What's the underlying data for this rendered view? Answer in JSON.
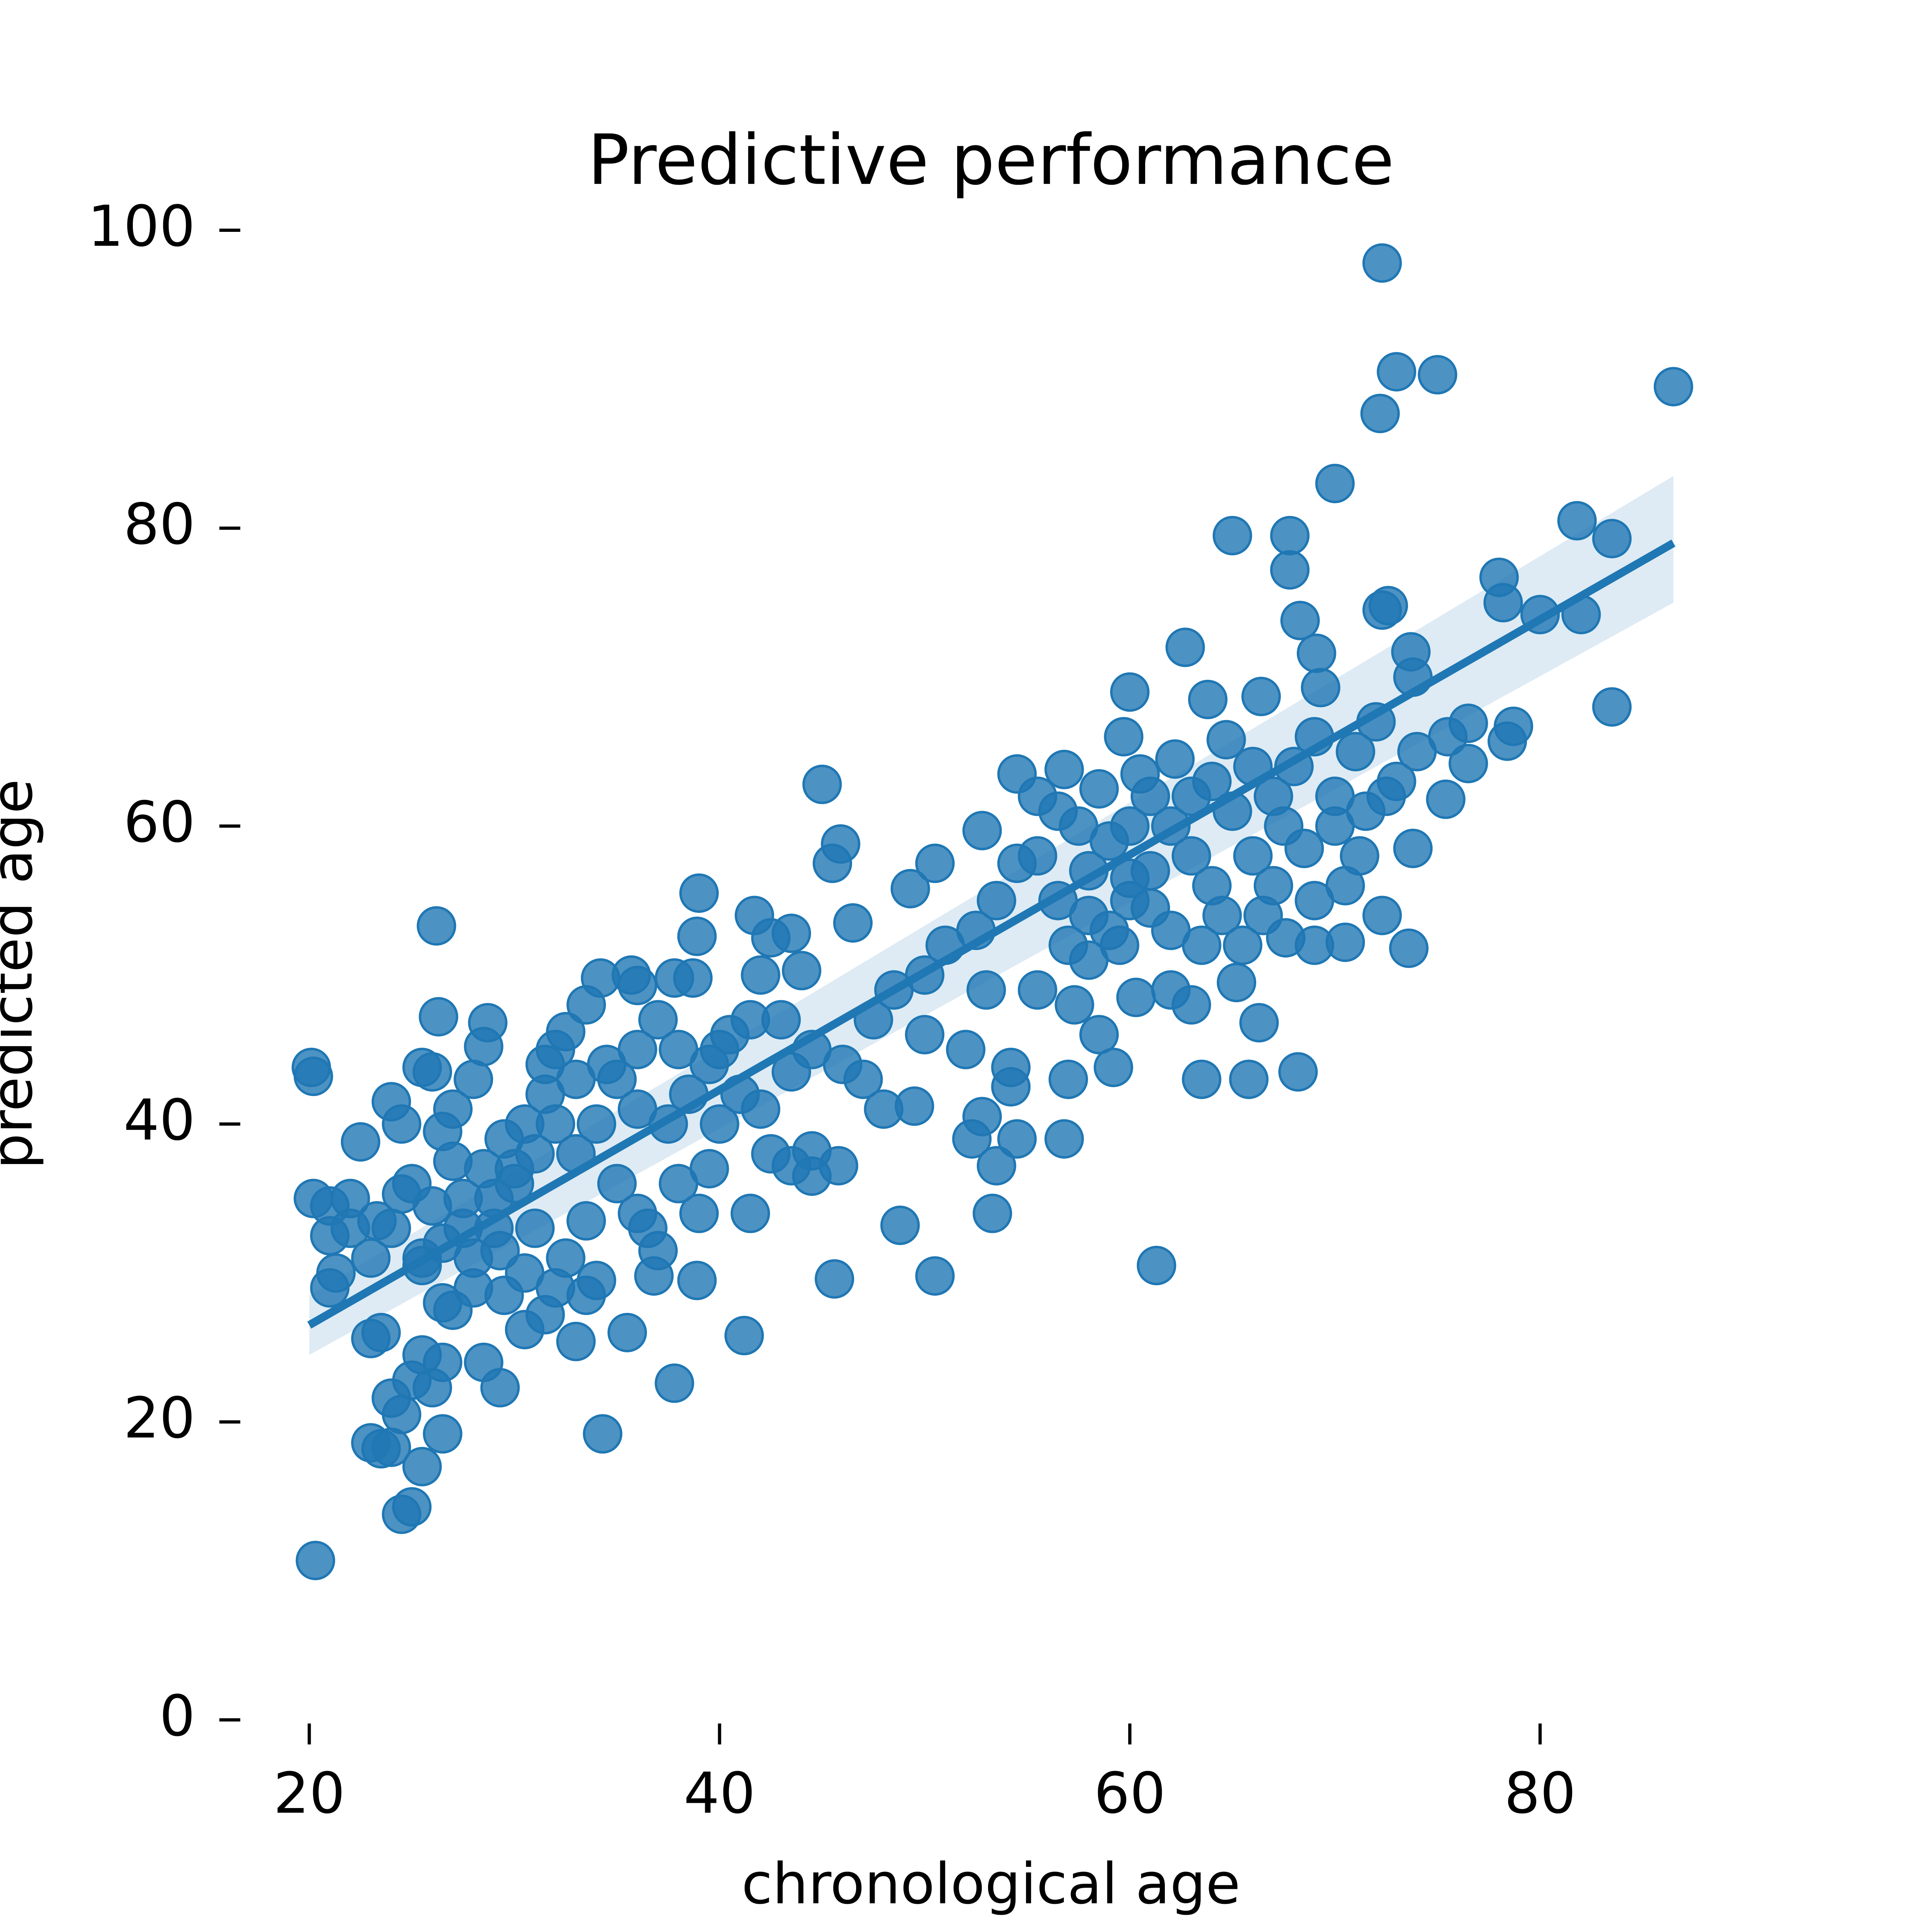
{
  "chart_data": {
    "type": "scatter",
    "title": "Predictive performance",
    "x_label": "chronological age",
    "y_label": "predicted age",
    "color": "#1f77b4",
    "xlim": [
      16.5,
      90
    ],
    "ylim": [
      -3,
      103
    ],
    "xticks": [
      20,
      40,
      60,
      80
    ],
    "yticks": [
      0,
      20,
      40,
      60,
      80,
      100
    ],
    "x": [
      72.3,
      73,
      75,
      86.5,
      72.2,
      70,
      65,
      67.8,
      67.8,
      81.8,
      83.5,
      78,
      78.2,
      72.3,
      72.6,
      80,
      82,
      68.3,
      69.1,
      62.7,
      73.7,
      60,
      63.8,
      66.4,
      69.3,
      73.8,
      83.5,
      76.5,
      78.7,
      78.4,
      59.7,
      64.7,
      45,
      45.9,
      45.5,
      54.5,
      56.8,
      52.8,
      50.5,
      49.3,
      39,
      41.7,
      26.2,
      38.9,
      46.5,
      73.6,
      70.5,
      69,
      67.6,
      72.3,
      75.4,
      76.5,
      73.8,
      20.1,
      20.2,
      20.2,
      21,
      21,
      21.3,
      21,
      22.5,
      23.3,
      24,
      24.5,
      25.5,
      26,
      26.3,
      28.7,
      28.5,
      26.5,
      27,
      25,
      24.5,
      26,
      27.5,
      28,
      29.3,
      27,
      26.5,
      25.5,
      23,
      23.5,
      24,
      24.5,
      23,
      23.5,
      24,
      25,
      25.5,
      26,
      26.5,
      26.5,
      25.5,
      24.5,
      25,
      28.5,
      29.3,
      20.3,
      30.5,
      31.5,
      33,
      33.5,
      34.3,
      35.5,
      37.8,
      38.9,
      36.8,
      34,
      33.5,
      32.5,
      31,
      30,
      29,
      30.5,
      31.5,
      32,
      32.5,
      31.5,
      33.5,
      34.2,
      35.7,
      36,
      37.8,
      38.7,
      37,
      36,
      35,
      34,
      33,
      35,
      36,
      36.5,
      37,
      38,
      39,
      39.5,
      40,
      41,
      40,
      41.5,
      42,
      42.5,
      43.5,
      44,
      43,
      44.5,
      43.5,
      42,
      42.5,
      43.5,
      44.5,
      44.5,
      45.8,
      41.5,
      41.2,
      45.6,
      48.8,
      50.5,
      53.3,
      53.5,
      52.3,
      52.8,
      54.5,
      56.8,
      54.2,
      54.2,
      57,
      59.2,
      61.3,
      63.5,
      65.8,
      68.2,
      66.3,
      65.2,
      63,
      62,
      60.3,
      58.5,
      57.3,
      55.5,
      53,
      52,
      50,
      49.5,
      48,
      47,
      46,
      47.5,
      48.5,
      50,
      51,
      52.5,
      53.5,
      54.5,
      55.5,
      56.5,
      57,
      58,
      59,
      60,
      61,
      62,
      63,
      64,
      65,
      66,
      67,
      68,
      69,
      70,
      71,
      72,
      73,
      74,
      75.5,
      62.2,
      61,
      60,
      59,
      58,
      57.5,
      56.5,
      55.5,
      58.5,
      60.5,
      63,
      64,
      64.5,
      63.5,
      62,
      61,
      60,
      59.5,
      58,
      66,
      67,
      67.5,
      68.5,
      70,
      71.5,
      72.5,
      70.5,
      71.2,
      69,
      66.5,
      65.5,
      28,
      27,
      29.5,
      30,
      31,
      32,
      33,
      34.5,
      36,
      37.5,
      38.5,
      39.5,
      40.5,
      38,
      22,
      23,
      22,
      24,
      25.5,
      26.5,
      27.5,
      28.5,
      29,
      28,
      30.5,
      32,
      29.5
    ],
    "values": [
      97.8,
      90.5,
      90.3,
      89.5,
      87.7,
      83,
      79.5,
      79.5,
      77.2,
      80.5,
      79.3,
      76.7,
      75,
      74.5,
      74.8,
      74.2,
      74.2,
      73.8,
      71.6,
      72,
      71.7,
      69,
      68.5,
      68.7,
      69.3,
      70,
      68,
      66.9,
      66.7,
      65.7,
      66,
      65.8,
      62.8,
      58.8,
      57.5,
      63.5,
      63.8,
      59.7,
      57.5,
      55.8,
      55.5,
      54,
      53.3,
      52.6,
      53.5,
      51.8,
      52.2,
      52,
      52.5,
      54,
      61.8,
      64.2,
      58.5,
      43.8,
      43.2,
      35,
      34.5,
      32.5,
      30,
      29,
      38.8,
      33.5,
      41.5,
      40,
      43.8,
      43.5,
      47.2,
      46.8,
      45.2,
      39.5,
      37.5,
      36,
      35.3,
      34.5,
      33,
      31,
      31.5,
      27.5,
      28,
      30.5,
      25.6,
      26,
      21.6,
      20.5,
      18.6,
      18.2,
      18.3,
      22.8,
      24.5,
      22.3,
      24,
      19.2,
      17,
      13.8,
      14.3,
      24,
      22.3,
      10.7,
      26.2,
      27.2,
      25.4,
      28.5,
      19.2,
      26,
      22.6,
      29.5,
      29.8,
      29.5,
      33.5,
      31,
      33,
      37,
      35,
      40,
      42,
      45,
      46.2,
      44,
      48,
      49.8,
      50,
      49.3,
      49.8,
      49.8,
      47,
      45,
      43,
      40,
      38,
      36,
      34,
      33,
      31.5,
      36,
      34,
      37,
      40,
      42,
      45,
      47,
      50,
      52.5,
      52.8,
      50.3,
      47,
      45,
      43.5,
      41,
      38,
      37.2,
      36.5,
      38.2,
      37.2,
      34,
      25.8,
      29.6,
      33.2,
      29.8,
      34,
      37.2,
      39,
      40.5,
      39,
      39,
      43.8,
      42.5,
      43,
      43.8,
      30.5,
      43,
      43,
      43.5,
      46.8,
      49.5,
      48,
      49,
      48.5,
      46,
      48,
      49,
      49,
      45,
      46,
      41.2,
      41,
      43,
      44,
      47,
      49,
      50,
      52,
      53,
      55,
      57.5,
      58,
      55,
      52,
      51,
      53,
      55,
      57,
      60,
      62,
      63,
      61,
      64,
      62,
      64,
      66,
      62,
      65,
      67,
      63,
      65,
      66,
      64.5,
      62,
      60,
      59,
      57,
      60,
      61,
      62,
      62.5,
      63.5,
      58,
      56,
      54,
      52,
      53,
      54.5,
      56.5,
      52,
      54,
      58,
      56,
      60,
      58.5,
      60,
      61,
      62,
      56,
      58,
      55,
      54,
      52,
      43,
      41,
      39,
      36,
      38,
      40,
      43,
      44,
      41,
      40,
      42,
      44,
      46,
      45,
      33,
      31,
      35,
      33,
      31,
      32,
      35,
      37,
      33,
      29,
      30,
      29,
      28.5
    ],
    "fit": {
      "x": [
        20,
        86.5
      ],
      "y": [
        26.5,
        79
      ],
      "lower": [
        24.5,
        75
      ],
      "upper": [
        28.5,
        83.5
      ]
    }
  }
}
